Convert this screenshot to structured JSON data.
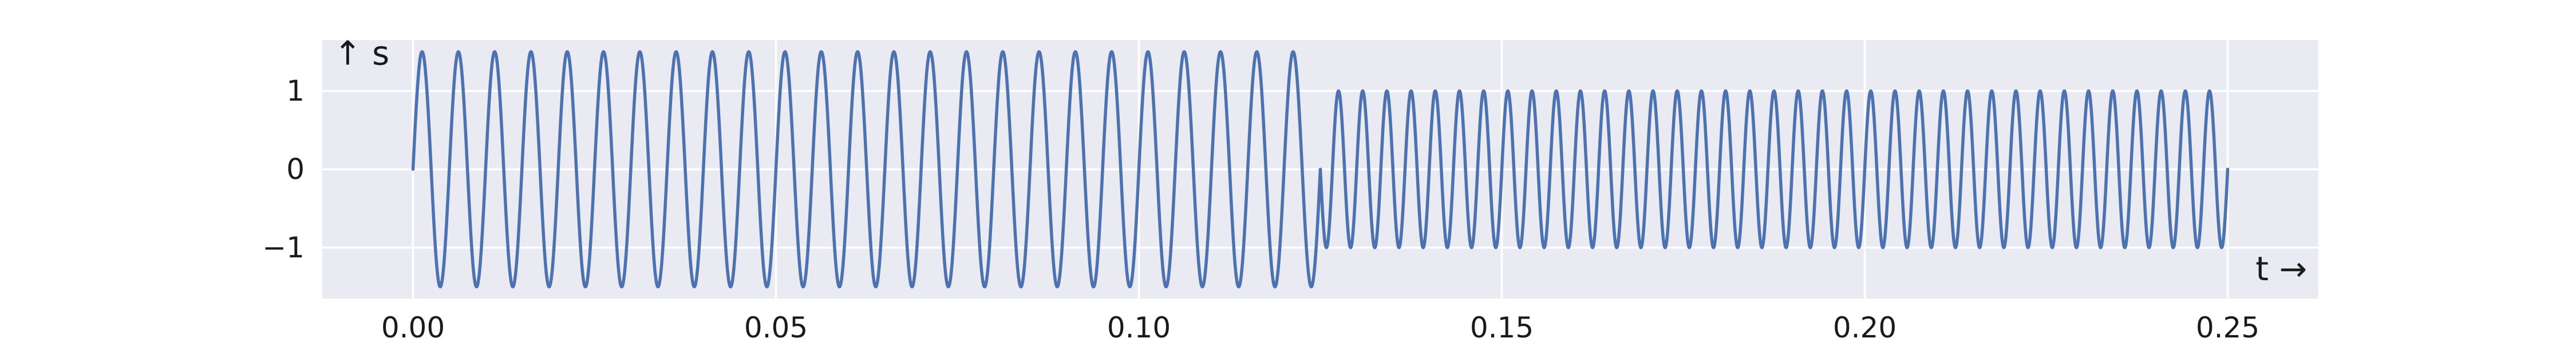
{
  "chart_data": {
    "type": "line",
    "title": "",
    "xlabel": "t →",
    "ylabel": "↑ s",
    "xlim": [
      -0.0125,
      0.2625
    ],
    "ylim": [
      -1.65,
      1.65
    ],
    "xticks": [
      0.0,
      0.05,
      0.1,
      0.15,
      0.2,
      0.25
    ],
    "xtick_labels": [
      "0.00",
      "0.05",
      "0.10",
      "0.15",
      "0.20",
      "0.25"
    ],
    "yticks": [
      1,
      0,
      -1
    ],
    "ytick_labels": [
      "1",
      "0",
      "−1"
    ],
    "grid": true,
    "legend": "none",
    "style": {
      "background": "#EAEAF2",
      "grid_color": "#FFFFFF",
      "line_color": "#4C72B0"
    },
    "series": [
      {
        "segments": [
          {
            "t_start": 0.0,
            "t_end": 0.125,
            "amplitude": 1.5,
            "frequency_hz": 200
          },
          {
            "t_start": 0.125,
            "t_end": 0.25,
            "amplitude": 1.0,
            "frequency_hz": 300
          }
        ]
      }
    ]
  }
}
